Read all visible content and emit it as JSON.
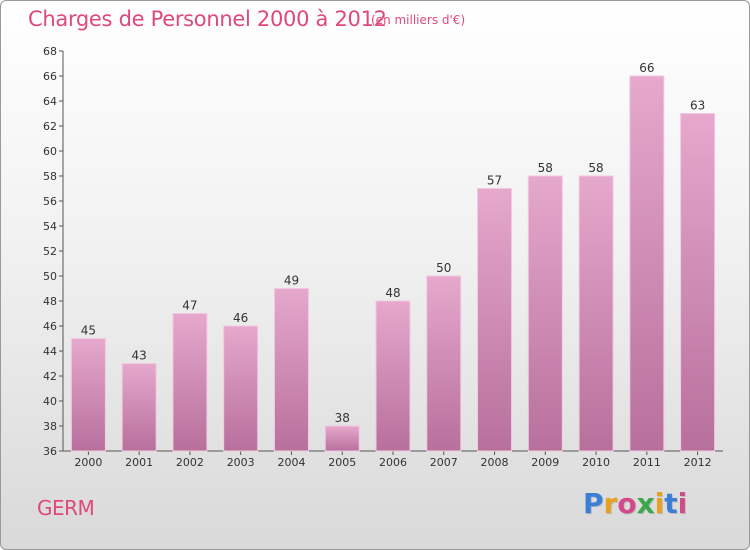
{
  "title": "Charges de Personnel 2000 à 2012",
  "unit": "(en milliers d'€)",
  "commune": "GERM",
  "brand": [
    "P",
    "r",
    "o",
    "x",
    "i",
    "t",
    "i"
  ],
  "brand_colors": [
    "#3a7fd5",
    "#e8a020",
    "#d24a8a",
    "#3aa84a",
    "#e8a020",
    "#3a7fd5",
    "#d24a8a"
  ],
  "colors": {
    "bar_light": "#e6a8cd",
    "bar_dark": "#b7709c",
    "accent": "#e0487a"
  },
  "chart_data": {
    "type": "bar",
    "title": "Charges de Personnel 2000 à 2012",
    "subtitle": "(en milliers d'€)",
    "categories": [
      "2000",
      "2001",
      "2002",
      "2003",
      "2004",
      "2005",
      "2006",
      "2007",
      "2008",
      "2009",
      "2010",
      "2011",
      "2012"
    ],
    "values": [
      45,
      43,
      47,
      46,
      49,
      38,
      48,
      50,
      57,
      58,
      58,
      66,
      63
    ],
    "xlabel": "",
    "ylabel": "",
    "ylim": [
      36,
      68
    ],
    "yticks": [
      36,
      38,
      40,
      42,
      44,
      46,
      48,
      50,
      52,
      54,
      56,
      58,
      60,
      62,
      64,
      66,
      68
    ],
    "grid": false,
    "data_labels": true
  }
}
